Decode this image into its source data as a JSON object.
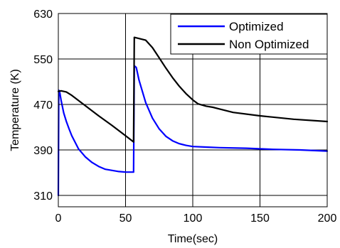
{
  "chart_data": {
    "type": "line",
    "title": "",
    "xlabel": "Time(sec)",
    "ylabel": "Temperature (K)",
    "xlim": [
      0,
      200
    ],
    "ylim": [
      290,
      630
    ],
    "xticks": [
      0,
      50,
      100,
      150,
      200
    ],
    "yticks": [
      310,
      390,
      470,
      550,
      630
    ],
    "xtick_labels": [
      "0",
      "50",
      "100",
      "150",
      "200"
    ],
    "ytick_labels": [
      "310",
      "390",
      "470",
      "550",
      "630"
    ],
    "grid": true,
    "legend_position": "top-right",
    "series": [
      {
        "name": "Optimized",
        "color": "#0000ff",
        "points": [
          [
            0,
            310
          ],
          [
            0.3,
            495
          ],
          [
            1,
            492
          ],
          [
            2,
            478
          ],
          [
            4,
            455
          ],
          [
            6,
            440
          ],
          [
            8,
            427
          ],
          [
            10,
            415
          ],
          [
            15,
            392
          ],
          [
            20,
            378
          ],
          [
            25,
            368
          ],
          [
            30,
            361
          ],
          [
            35,
            356
          ],
          [
            40,
            354
          ],
          [
            45,
            352
          ],
          [
            50,
            351
          ],
          [
            56,
            351
          ],
          [
            56.5,
            538
          ],
          [
            58,
            535
          ],
          [
            60,
            513
          ],
          [
            65,
            473
          ],
          [
            70,
            446
          ],
          [
            75,
            427
          ],
          [
            80,
            414
          ],
          [
            85,
            406
          ],
          [
            90,
            401
          ],
          [
            95,
            398
          ],
          [
            100,
            396
          ],
          [
            110,
            395
          ],
          [
            120,
            394
          ],
          [
            140,
            393
          ],
          [
            160,
            391
          ],
          [
            180,
            390
          ],
          [
            200,
            388
          ]
        ]
      },
      {
        "name": "Non Optimized",
        "color": "#000000",
        "points": [
          [
            0,
            493
          ],
          [
            2,
            494
          ],
          [
            6,
            492
          ],
          [
            10,
            486
          ],
          [
            20,
            468
          ],
          [
            30,
            450
          ],
          [
            40,
            433
          ],
          [
            50,
            415
          ],
          [
            56,
            404
          ],
          [
            56.5,
            588
          ],
          [
            60,
            586
          ],
          [
            65,
            583
          ],
          [
            70,
            570
          ],
          [
            75,
            552
          ],
          [
            80,
            534
          ],
          [
            85,
            517
          ],
          [
            90,
            502
          ],
          [
            95,
            489
          ],
          [
            100,
            478
          ],
          [
            104,
            471
          ],
          [
            110,
            467
          ],
          [
            115,
            465
          ],
          [
            120,
            462
          ],
          [
            130,
            456
          ],
          [
            150,
            450
          ],
          [
            175,
            444
          ],
          [
            200,
            440
          ]
        ]
      }
    ]
  }
}
